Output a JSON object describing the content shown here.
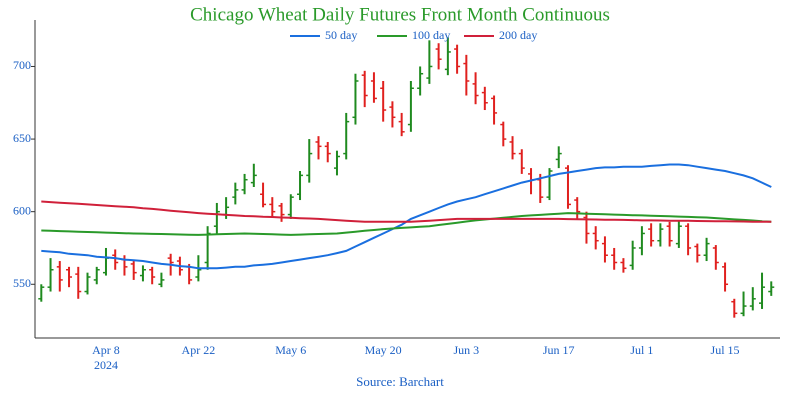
{
  "chart_data": {
    "type": "ohlc",
    "title": "Chicago Wheat Daily Futures Front Month Continuous",
    "source": "Source: Barchart",
    "year_label": "2024",
    "categories": [
      null,
      null,
      null,
      null,
      null,
      null,
      null,
      "Apr 8",
      null,
      null,
      null,
      null,
      null,
      null,
      null,
      null,
      null,
      "Apr 22",
      null,
      null,
      null,
      null,
      null,
      null,
      null,
      null,
      null,
      "May 6",
      null,
      null,
      null,
      null,
      null,
      null,
      null,
      null,
      null,
      "May 20",
      null,
      null,
      null,
      null,
      null,
      null,
      null,
      null,
      "Jun 3",
      null,
      null,
      null,
      null,
      null,
      null,
      null,
      null,
      null,
      "Jun 17",
      null,
      null,
      null,
      null,
      null,
      null,
      null,
      null,
      "Jul 1",
      null,
      null,
      null,
      null,
      null,
      null,
      null,
      null,
      "Jul 15",
      null,
      null,
      null,
      null,
      null
    ],
    "open": [
      540,
      548,
      562,
      560,
      557,
      545,
      553,
      558,
      570,
      567,
      564,
      556,
      560,
      550,
      568,
      566,
      562,
      555,
      565,
      590,
      598,
      610,
      615,
      620,
      612,
      605,
      604,
      598,
      612,
      625,
      648,
      645,
      630,
      640,
      665,
      694,
      690,
      685,
      672,
      662,
      660,
      685,
      692,
      712,
      698,
      712,
      702,
      688,
      682,
      678,
      660,
      648,
      640,
      626,
      622,
      610,
      636,
      630,
      608,
      596,
      585,
      578,
      570,
      565,
      563,
      575,
      588,
      580,
      590,
      578,
      590,
      576,
      570,
      575,
      562,
      538,
      530,
      535,
      537,
      545
    ],
    "high": [
      550,
      568,
      566,
      562,
      562,
      558,
      562,
      575,
      574,
      570,
      566,
      563,
      562,
      558,
      571,
      569,
      564,
      570,
      590,
      606,
      610,
      620,
      626,
      633,
      620,
      610,
      606,
      612,
      628,
      650,
      652,
      648,
      642,
      668,
      695,
      697,
      696,
      690,
      676,
      668,
      690,
      700,
      718,
      716,
      720,
      715,
      708,
      696,
      686,
      680,
      662,
      652,
      643,
      630,
      626,
      630,
      645,
      632,
      610,
      600,
      590,
      583,
      575,
      568,
      580,
      590,
      592,
      592,
      593,
      594,
      592,
      578,
      582,
      577,
      565,
      540,
      545,
      548,
      558,
      552
    ],
    "low": [
      538,
      545,
      545,
      548,
      540,
      543,
      550,
      556,
      560,
      556,
      553,
      552,
      550,
      548,
      556,
      556,
      550,
      552,
      560,
      584,
      595,
      605,
      612,
      617,
      603,
      596,
      593,
      595,
      608,
      620,
      636,
      634,
      625,
      636,
      660,
      672,
      675,
      662,
      658,
      652,
      655,
      680,
      688,
      698,
      694,
      695,
      680,
      674,
      670,
      660,
      645,
      636,
      626,
      612,
      606,
      608,
      630,
      602,
      595,
      578,
      574,
      565,
      560,
      558,
      560,
      570,
      576,
      576,
      576,
      575,
      570,
      565,
      566,
      560,
      545,
      527,
      528,
      532,
      533,
      542
    ],
    "close": [
      548,
      560,
      553,
      555,
      545,
      555,
      560,
      568,
      565,
      562,
      558,
      560,
      555,
      553,
      565,
      560,
      553,
      560,
      585,
      600,
      603,
      615,
      622,
      625,
      605,
      600,
      598,
      610,
      625,
      640,
      645,
      640,
      638,
      662,
      690,
      680,
      678,
      670,
      665,
      655,
      685,
      695,
      700,
      705,
      710,
      700,
      690,
      680,
      675,
      668,
      650,
      640,
      630,
      622,
      610,
      628,
      640,
      605,
      600,
      585,
      580,
      570,
      565,
      561,
      575,
      585,
      580,
      588,
      580,
      590,
      575,
      570,
      578,
      565,
      550,
      530,
      535,
      540,
      548,
      548
    ],
    "up_color": "#1f8a1f",
    "down_color": "#e0201e",
    "series": [
      {
        "name": "50 day",
        "color": "#1a6fdf",
        "values": [
          573,
          572.5,
          572,
          571,
          570.5,
          570,
          569,
          568.5,
          568,
          567,
          566.5,
          566,
          565,
          564,
          563.5,
          562.5,
          562,
          561,
          561,
          561,
          561.5,
          562,
          562,
          563,
          563.5,
          564,
          565,
          566,
          567,
          568,
          569,
          570,
          571.5,
          573,
          576,
          579,
          582,
          585,
          588,
          591,
          595,
          597.5,
          600,
          602.5,
          605,
          607,
          608.5,
          610,
          612,
          614,
          616,
          618,
          620,
          621.5,
          623,
          624.5,
          626,
          627,
          628,
          629,
          630,
          630.5,
          630.5,
          631,
          631,
          631,
          631.5,
          632,
          632.5,
          632.5,
          632,
          631,
          630,
          629,
          628,
          626.5,
          625,
          623,
          620,
          617
        ]
      },
      {
        "name": "100 day",
        "color": "#2a9a2a",
        "values": [
          587,
          586.8,
          586.6,
          586.4,
          586.2,
          586,
          585.8,
          585.6,
          585.4,
          585.2,
          585,
          584.9,
          584.7,
          584.6,
          584.4,
          584.3,
          584.1,
          584,
          584.2,
          584.4,
          584.6,
          584.8,
          585,
          584.8,
          584.6,
          584.4,
          584.2,
          584,
          584.2,
          584.4,
          584.6,
          584.8,
          585,
          585.6,
          586.2,
          586.8,
          587.4,
          588,
          588.4,
          588.8,
          589.2,
          589.6,
          590,
          590.8,
          591.6,
          592.4,
          593.2,
          594,
          594.6,
          595.2,
          595.8,
          596.4,
          597,
          597.4,
          597.8,
          598.2,
          598.6,
          599,
          598.8,
          598.6,
          598.4,
          598.2,
          598,
          597.8,
          597.6,
          597.4,
          597.2,
          597,
          596.8,
          596.6,
          596.4,
          596.2,
          596,
          595.6,
          595.1,
          594.7,
          594.3,
          593.9,
          593.4,
          593
        ]
      },
      {
        "name": "200 day",
        "color": "#d0203a",
        "values": [
          607,
          606.6,
          606.2,
          605.8,
          605.4,
          605,
          604.6,
          604.2,
          603.8,
          603.4,
          603,
          602.4,
          601.9,
          601.3,
          600.7,
          600.1,
          599.6,
          599,
          598.6,
          598.2,
          597.8,
          597.4,
          597,
          596.8,
          596.5,
          596.3,
          596,
          595.8,
          595.5,
          595.3,
          595,
          594.6,
          594.2,
          593.8,
          593.4,
          593,
          593,
          593,
          593,
          593,
          593,
          593.4,
          593.8,
          594.2,
          594.6,
          595,
          595,
          595,
          595,
          595,
          595,
          595,
          595,
          595,
          595,
          595,
          595,
          594.9,
          594.8,
          594.7,
          594.6,
          594.5,
          594.4,
          594.3,
          594.2,
          594,
          594,
          593.9,
          593.8,
          593.8,
          593.7,
          593.6,
          593.5,
          593.4,
          593.4,
          593.3,
          593.2,
          593.1,
          593.1,
          593
        ]
      }
    ],
    "ylim": [
      513,
      732
    ],
    "yticks": [
      550,
      600,
      650,
      700
    ],
    "legend": "top"
  }
}
